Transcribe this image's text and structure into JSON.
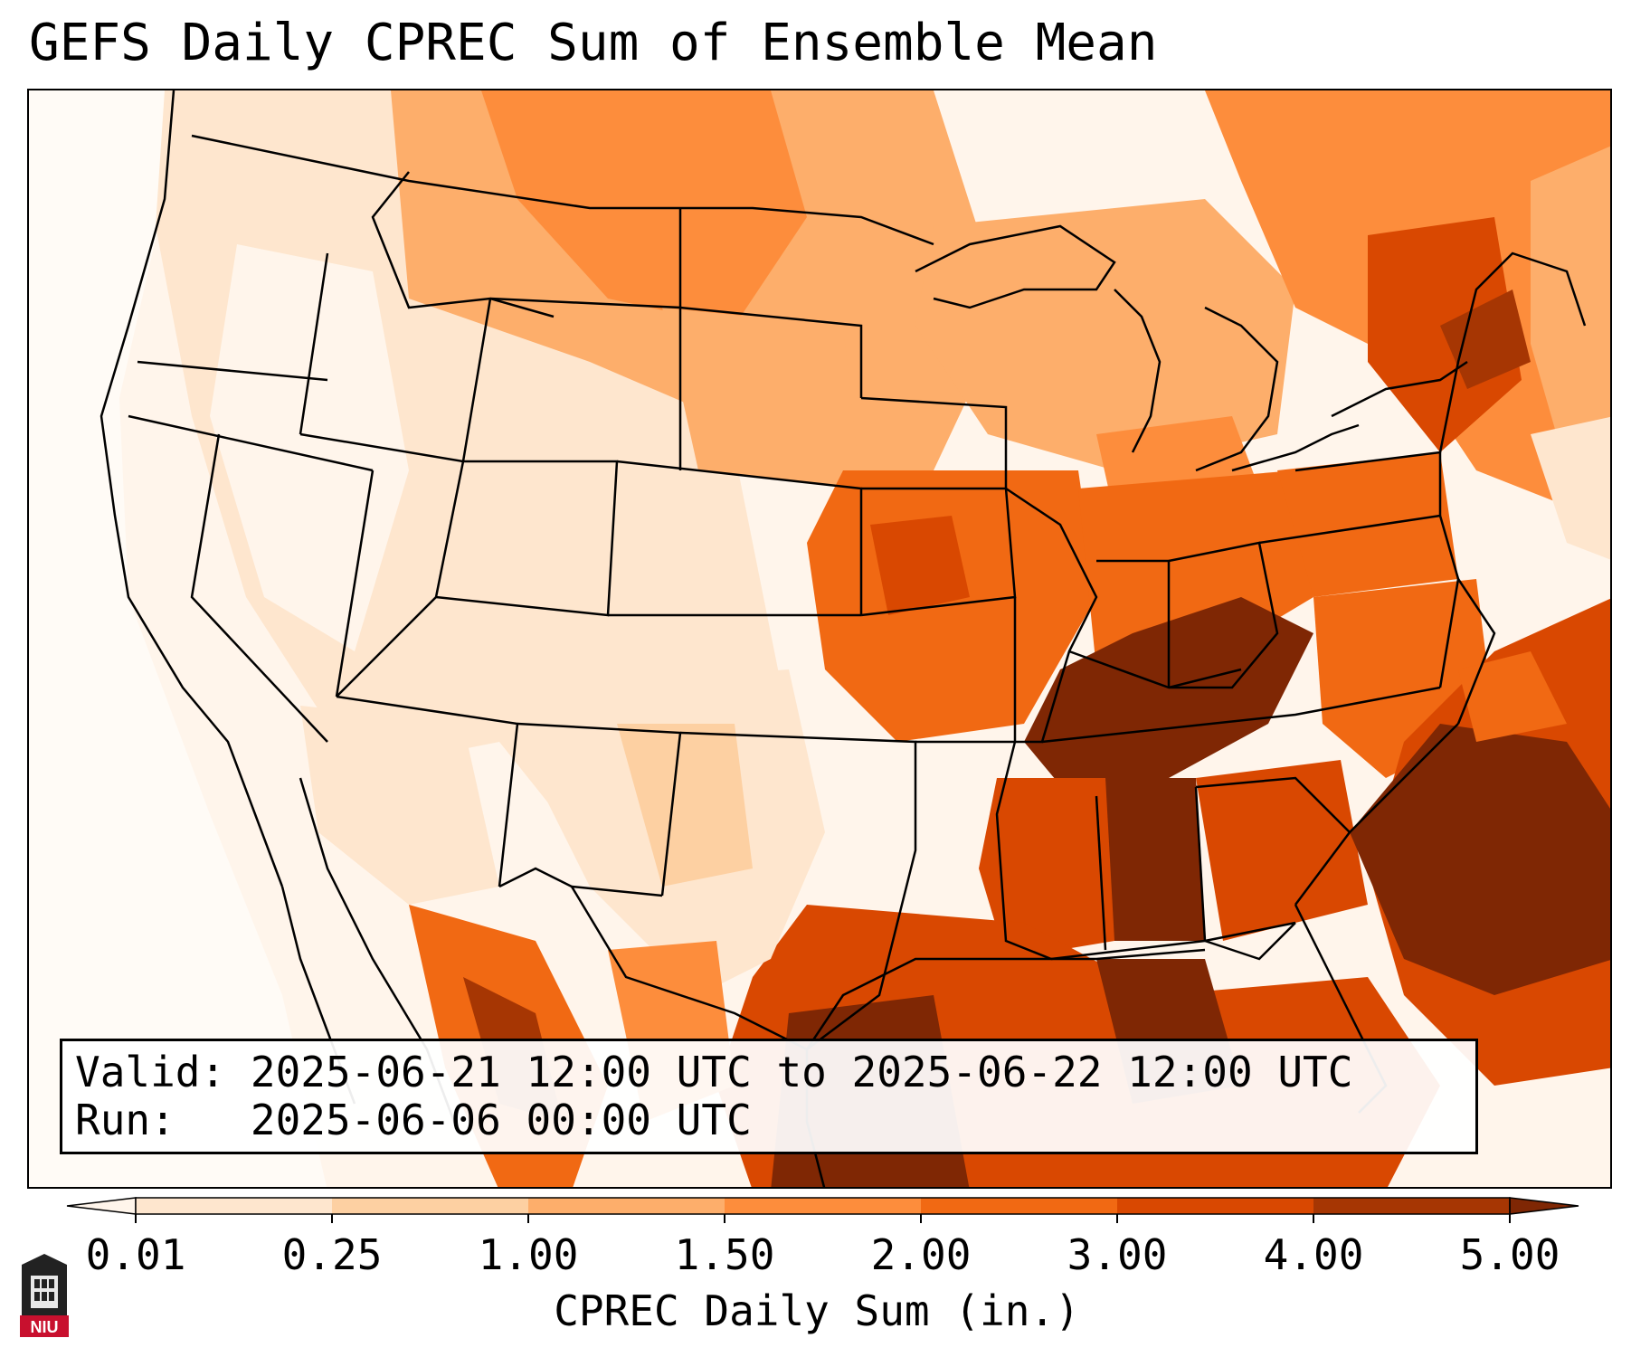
{
  "title": "GEFS Daily CPREC Sum of Ensemble Mean",
  "info": {
    "valid_label": "Valid:",
    "valid_value": "2025-06-21 12:00 UTC to 2025-06-22 12:00 UTC",
    "run_label": "Run:",
    "run_value": "2025-06-06 00:00 UTC"
  },
  "colorbar": {
    "label": "CPREC Daily Sum (in.)",
    "ticks": [
      "0.01",
      "0.25",
      "1.00",
      "1.50",
      "2.00",
      "3.00",
      "4.00",
      "5.00"
    ],
    "colors": [
      "#fff5eb",
      "#fee6ce",
      "#fdd0a2",
      "#fdae6b",
      "#fd8d3c",
      "#f16913",
      "#d94801",
      "#a63603",
      "#7f2704"
    ],
    "extend": "both"
  },
  "logo": {
    "text": "NIU",
    "colors": [
      "#c8102e",
      "#000000"
    ]
  },
  "map": {
    "projection": "Lambert Conformal (CONUS)",
    "features": [
      "coastlines",
      "state-borders",
      "country-borders"
    ],
    "precip_regions": [
      {
        "name": "Pacific Ocean west of California",
        "level": "0.01-0.25"
      },
      {
        "name": "Western US interior",
        "level": "0.01-0.50"
      },
      {
        "name": "Northern Plains & Upper Midwest",
        "level": "1.50-2.00"
      },
      {
        "name": "Tennessee Valley",
        "level": "4.00-5.00"
      },
      {
        "name": "Alabama",
        "level": "4.00-5.00"
      },
      {
        "name": "Western Atlantic off Southeast coast",
        "level": "4.00-5.00"
      },
      {
        "name": "Western Gulf of Mexico",
        "level": "4.00-5.00"
      },
      {
        "name": "Northern New England / New York",
        "level": "3.00-4.00"
      },
      {
        "name": "Sierra Madre Occidental, Mexico",
        "level": "3.00-4.00"
      }
    ]
  }
}
